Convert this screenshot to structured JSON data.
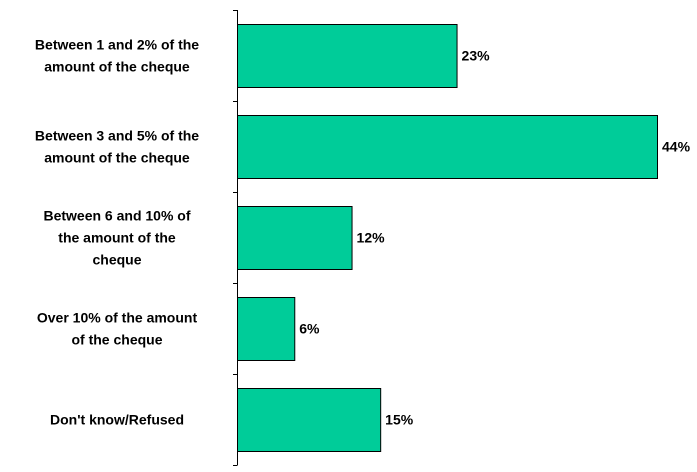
{
  "chart_data": {
    "type": "bar",
    "orientation": "horizontal",
    "categories": [
      [
        "Between 1 and 2% of the",
        "amount of the cheque"
      ],
      [
        "Between 3 and 5% of the",
        "amount of the cheque"
      ],
      [
        "Between 6 and 10% of",
        "the amount of the",
        "cheque"
      ],
      [
        "Over 10% of the amount",
        "of the cheque"
      ],
      [
        "Don't know/Refused"
      ]
    ],
    "values": [
      23,
      44,
      12,
      6,
      15
    ],
    "value_labels": [
      "23%",
      "44%",
      "12%",
      "6%",
      "15%"
    ],
    "xlim": [
      0,
      45
    ],
    "grid": false,
    "legend": "none",
    "bar_color": "#00CC99"
  }
}
